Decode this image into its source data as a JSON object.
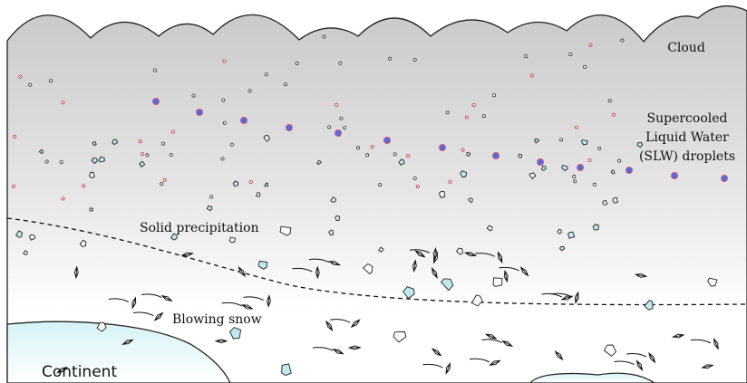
{
  "labels": {
    "cloud": "Cloud",
    "slw": [
      "Supercooled",
      "Liquid Water",
      "(SLW) droplets"
    ],
    "solid_precipitation": "Solid precipitation",
    "blowing_snow": "Blowing snow",
    "continent": "Continent"
  }
}
